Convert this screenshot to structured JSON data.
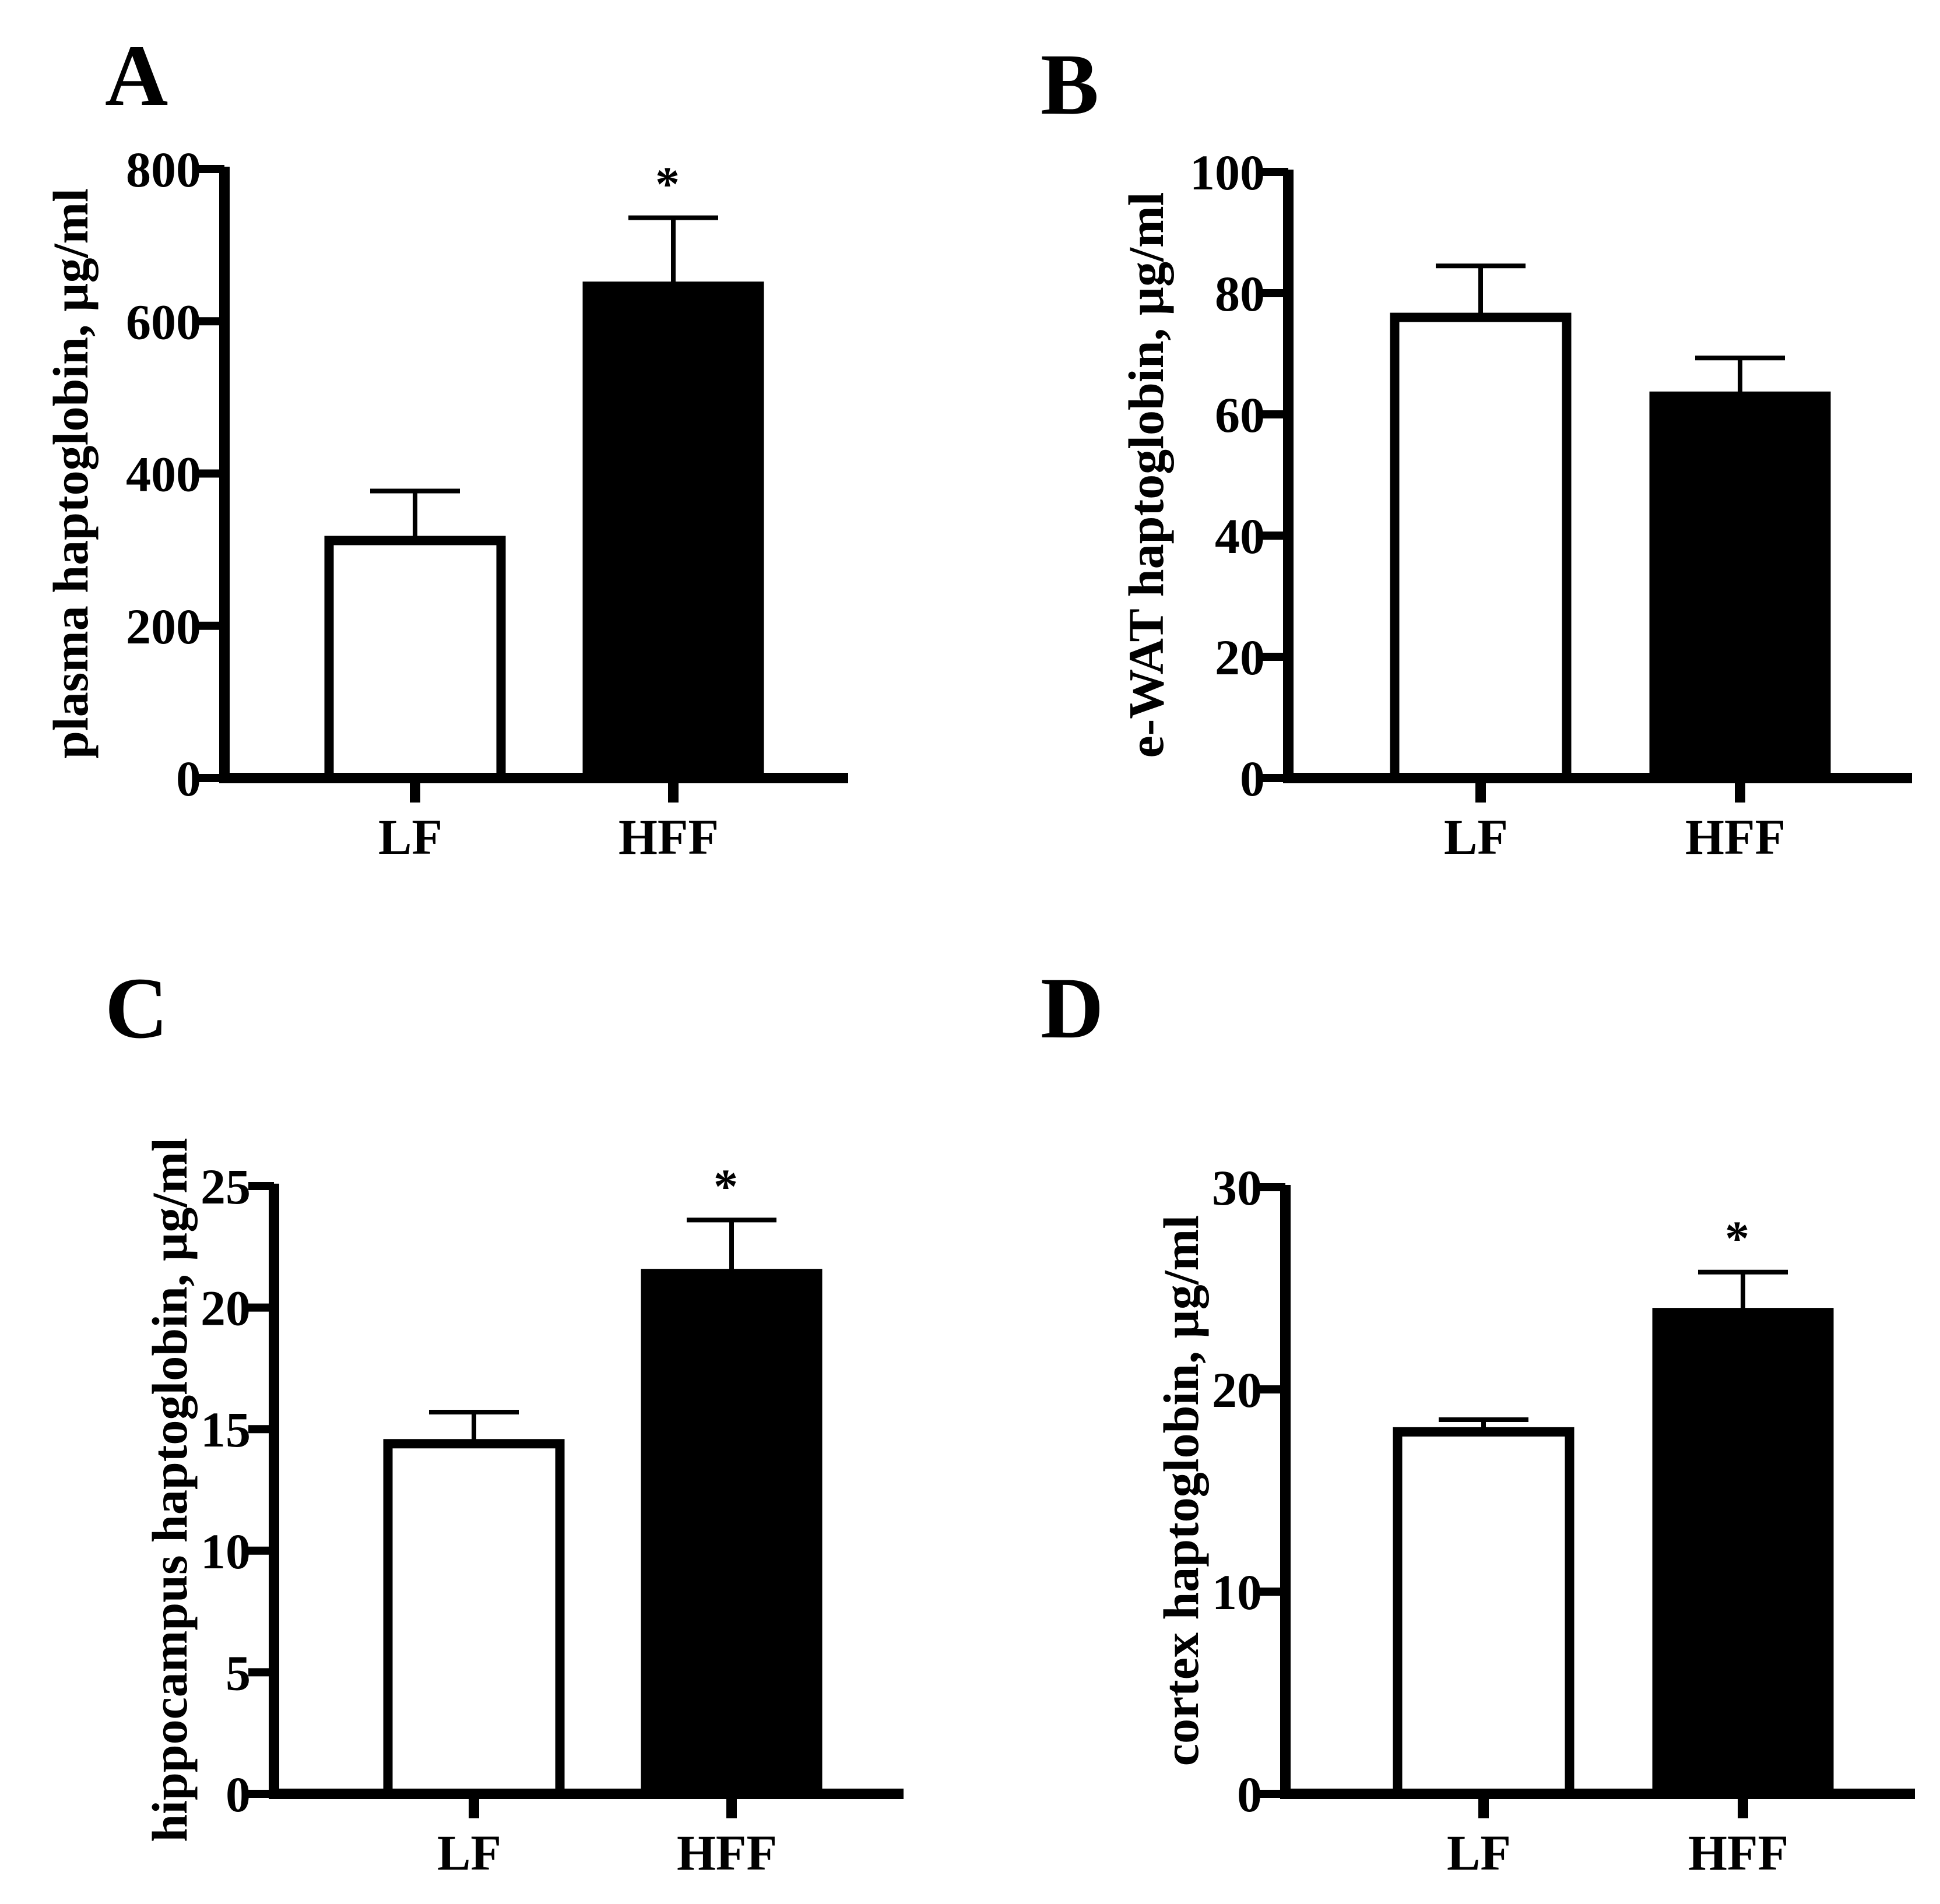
{
  "panels": [
    {
      "letter": "A",
      "chart_data": {
        "type": "bar",
        "categories": [
          "LF",
          "HFF"
        ],
        "values": [
          312,
          646
        ],
        "errors": [
          65,
          90
        ],
        "annotations": [
          "",
          "*"
        ],
        "fills": [
          "#ffffff",
          "#000000"
        ],
        "title": "",
        "xlabel": "",
        "ylabel": "plasma haptoglobin, µg/ml",
        "ylim": [
          0,
          800
        ],
        "yticks": [
          0,
          200,
          400,
          600,
          800
        ],
        "grid": false
      }
    },
    {
      "letter": "B",
      "chart_data": {
        "type": "bar",
        "categories": [
          "LF",
          "HFF"
        ],
        "values": [
          76,
          63
        ],
        "errors": [
          8.5,
          6.3
        ],
        "annotations": [
          "",
          ""
        ],
        "fills": [
          "#ffffff",
          "#000000"
        ],
        "title": "",
        "xlabel": "",
        "ylabel": "e-WAT haptoglobin, µg/ml",
        "ylim": [
          0,
          100
        ],
        "yticks": [
          0,
          20,
          40,
          60,
          80,
          100
        ],
        "grid": false
      }
    },
    {
      "letter": "C",
      "chart_data": {
        "type": "bar",
        "categories": [
          "LF",
          "HFF"
        ],
        "values": [
          14.4,
          21.4
        ],
        "errors": [
          1.3,
          2.2
        ],
        "annotations": [
          "",
          "*"
        ],
        "fills": [
          "#ffffff",
          "#000000"
        ],
        "title": "",
        "xlabel": "",
        "ylabel": "hippocampus haptoglobin, µg/ml",
        "ylim": [
          0,
          25
        ],
        "yticks": [
          0,
          5,
          10,
          15,
          20,
          25
        ],
        "grid": false
      }
    },
    {
      "letter": "D",
      "chart_data": {
        "type": "bar",
        "categories": [
          "LF",
          "HFF"
        ],
        "values": [
          17.9,
          23.8
        ],
        "errors": [
          0.6,
          2.0
        ],
        "annotations": [
          "",
          "*"
        ],
        "fills": [
          "#ffffff",
          "#000000"
        ],
        "title": "",
        "xlabel": "",
        "ylabel": "cortex haptoglobin, µg/ml",
        "ylim": [
          0,
          30
        ],
        "yticks": [
          0,
          10,
          20,
          30
        ],
        "grid": false
      }
    }
  ]
}
